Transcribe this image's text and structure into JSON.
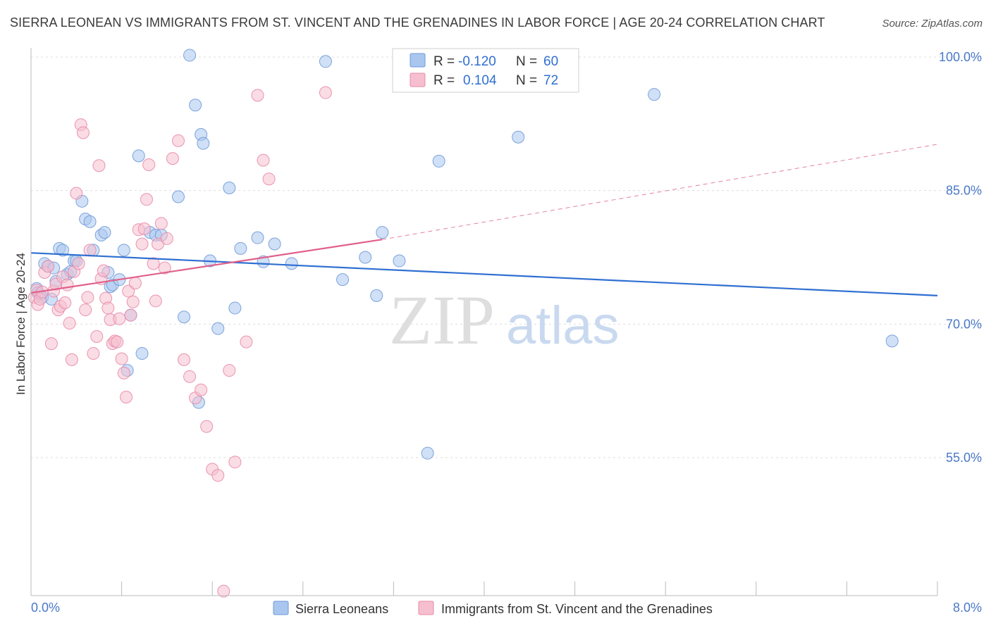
{
  "title": "SIERRA LEONEAN VS IMMIGRANTS FROM ST. VINCENT AND THE GRENADINES IN LABOR FORCE | AGE 20-24 CORRELATION CHART",
  "source": "Source: ZipAtlas.com",
  "watermark": {
    "zip": "ZIP",
    "atlas": "atlas"
  },
  "legend_top": {
    "rows": [
      {
        "r_label": "R =",
        "r_value": "-0.120",
        "n_label": "N =",
        "n_value": "60"
      },
      {
        "r_label": "R =",
        "r_value": "0.104",
        "n_label": "N =",
        "n_value": "72"
      }
    ]
  },
  "legend_bottom": [
    "Sierra Leoneans",
    "Immigrants from St. Vincent and the Grenadines"
  ],
  "colors": {
    "blue_fill": "#a9c6ee",
    "blue_stroke": "#6f9ad8",
    "blue_line": "#2f6fd1",
    "pink_fill": "#f6bfd0",
    "pink_stroke": "#e88aa8",
    "pink_line": "#e0608a",
    "grid": "#dddddd",
    "tick_label": "#4a78c8"
  },
  "chart_data": {
    "type": "scatter",
    "title": "SIERRA LEONEAN VS IMMIGRANTS FROM ST. VINCENT AND THE GRENADINES IN LABOR FORCE | AGE 20-24 CORRELATION CHART",
    "xlabel": "",
    "ylabel": "In Labor Force | Age 20-24",
    "xlim": [
      0.0,
      8.0
    ],
    "ylim": [
      39.5,
      101.5
    ],
    "x_tick_labels": [
      "0.0%",
      "8.0%"
    ],
    "y_ticks": [
      55.0,
      70.0,
      85.0,
      100.0
    ],
    "y_tick_labels": [
      "55.0%",
      "70.0%",
      "85.0%",
      "100.0%"
    ],
    "legend_position": "top-center",
    "grid": true,
    "series": [
      {
        "name": "Sierra Leoneans",
        "color": "#a9c6ee",
        "r": -0.12,
        "n": 60,
        "trend": {
          "x": [
            0.0,
            8.0
          ],
          "y": [
            78.0,
            73.2
          ]
        },
        "points": [
          [
            0.05,
            74.0
          ],
          [
            0.06,
            73.5
          ],
          [
            0.08,
            73.3
          ],
          [
            0.1,
            73.0
          ],
          [
            0.12,
            76.8
          ],
          [
            0.15,
            76.5
          ],
          [
            0.18,
            72.8
          ],
          [
            0.2,
            76.3
          ],
          [
            0.22,
            74.8
          ],
          [
            0.25,
            78.5
          ],
          [
            0.28,
            78.3
          ],
          [
            0.32,
            75.6
          ],
          [
            0.35,
            75.9
          ],
          [
            0.38,
            77.1
          ],
          [
            0.4,
            77.1
          ],
          [
            0.45,
            83.8
          ],
          [
            0.48,
            81.8
          ],
          [
            0.52,
            81.5
          ],
          [
            0.55,
            78.3
          ],
          [
            0.62,
            80.0
          ],
          [
            0.65,
            80.3
          ],
          [
            0.68,
            75.8
          ],
          [
            0.7,
            74.2
          ],
          [
            0.72,
            74.4
          ],
          [
            0.78,
            75.0
          ],
          [
            0.82,
            78.3
          ],
          [
            0.85,
            64.8
          ],
          [
            0.88,
            71.0
          ],
          [
            0.95,
            88.9
          ],
          [
            0.98,
            66.7
          ],
          [
            1.05,
            80.3
          ],
          [
            1.1,
            80.0
          ],
          [
            1.15,
            80.0
          ],
          [
            1.3,
            84.3
          ],
          [
            1.35,
            70.8
          ],
          [
            1.4,
            100.2
          ],
          [
            1.45,
            94.6
          ],
          [
            1.48,
            61.2
          ],
          [
            1.5,
            91.3
          ],
          [
            1.52,
            90.3
          ],
          [
            1.58,
            77.1
          ],
          [
            1.65,
            69.5
          ],
          [
            1.75,
            85.3
          ],
          [
            1.8,
            71.8
          ],
          [
            1.85,
            78.5
          ],
          [
            2.0,
            79.7
          ],
          [
            2.05,
            77.0
          ],
          [
            2.15,
            79.0
          ],
          [
            2.3,
            76.8
          ],
          [
            2.6,
            99.5
          ],
          [
            2.75,
            75.0
          ],
          [
            2.95,
            77.5
          ],
          [
            3.05,
            73.2
          ],
          [
            3.1,
            80.3
          ],
          [
            3.25,
            77.1
          ],
          [
            3.5,
            55.5
          ],
          [
            3.6,
            88.3
          ],
          [
            4.3,
            91.0
          ],
          [
            5.5,
            95.8
          ],
          [
            7.6,
            68.1
          ]
        ]
      },
      {
        "name": "Immigrants from St. Vincent and the Grenadines",
        "color": "#f6bfd0",
        "r": 0.104,
        "n": 72,
        "trend": {
          "x": [
            0.0,
            3.1
          ],
          "y": [
            73.5,
            79.5
          ]
        },
        "trend_dashed": {
          "x": [
            3.1,
            8.0
          ],
          "y": [
            79.5,
            90.2
          ]
        },
        "points": [
          [
            0.03,
            73.0
          ],
          [
            0.05,
            73.8
          ],
          [
            0.06,
            72.2
          ],
          [
            0.08,
            72.8
          ],
          [
            0.1,
            73.6
          ],
          [
            0.12,
            75.8
          ],
          [
            0.15,
            76.5
          ],
          [
            0.18,
            67.8
          ],
          [
            0.2,
            73.7
          ],
          [
            0.22,
            74.5
          ],
          [
            0.24,
            71.6
          ],
          [
            0.26,
            72.0
          ],
          [
            0.28,
            75.3
          ],
          [
            0.3,
            72.4
          ],
          [
            0.32,
            74.4
          ],
          [
            0.34,
            70.1
          ],
          [
            0.36,
            66.0
          ],
          [
            0.38,
            75.9
          ],
          [
            0.4,
            84.7
          ],
          [
            0.42,
            76.8
          ],
          [
            0.44,
            92.4
          ],
          [
            0.46,
            91.5
          ],
          [
            0.48,
            71.6
          ],
          [
            0.5,
            73.0
          ],
          [
            0.52,
            78.3
          ],
          [
            0.55,
            66.7
          ],
          [
            0.58,
            68.6
          ],
          [
            0.6,
            87.8
          ],
          [
            0.62,
            75.1
          ],
          [
            0.64,
            76.0
          ],
          [
            0.66,
            72.9
          ],
          [
            0.68,
            71.8
          ],
          [
            0.7,
            70.5
          ],
          [
            0.72,
            67.8
          ],
          [
            0.74,
            68.1
          ],
          [
            0.76,
            68.0
          ],
          [
            0.78,
            70.6
          ],
          [
            0.8,
            66.1
          ],
          [
            0.82,
            64.5
          ],
          [
            0.84,
            61.8
          ],
          [
            0.86,
            73.7
          ],
          [
            0.88,
            71.0
          ],
          [
            0.9,
            72.5
          ],
          [
            0.92,
            74.6
          ],
          [
            0.95,
            80.6
          ],
          [
            0.98,
            79.0
          ],
          [
            1.0,
            80.7
          ],
          [
            1.02,
            84.0
          ],
          [
            1.04,
            87.9
          ],
          [
            1.08,
            76.8
          ],
          [
            1.1,
            72.6
          ],
          [
            1.12,
            79.0
          ],
          [
            1.15,
            81.3
          ],
          [
            1.18,
            76.3
          ],
          [
            1.2,
            79.6
          ],
          [
            1.25,
            88.6
          ],
          [
            1.3,
            90.6
          ],
          [
            1.35,
            66.0
          ],
          [
            1.4,
            64.1
          ],
          [
            1.45,
            61.7
          ],
          [
            1.5,
            62.6
          ],
          [
            1.55,
            58.5
          ],
          [
            1.6,
            53.7
          ],
          [
            1.65,
            53.0
          ],
          [
            1.7,
            40.0
          ],
          [
            1.75,
            64.8
          ],
          [
            1.8,
            54.5
          ],
          [
            1.9,
            68.0
          ],
          [
            2.0,
            95.7
          ],
          [
            2.05,
            88.4
          ],
          [
            2.1,
            86.3
          ],
          [
            2.6,
            96.0
          ]
        ]
      }
    ]
  }
}
